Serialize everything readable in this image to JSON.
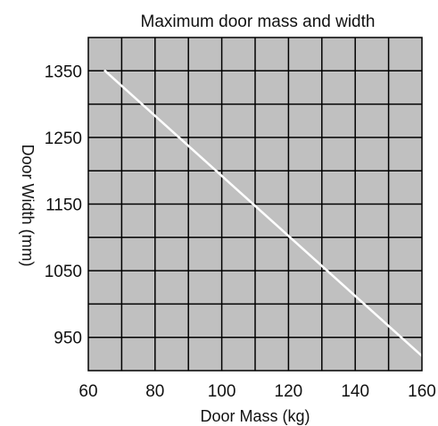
{
  "chart_data": {
    "type": "line",
    "title": "Maximum door mass and width",
    "xlabel": "Door Mass (kg)",
    "ylabel": "Door Width (mm)",
    "xlim": [
      60,
      160
    ],
    "ylim": [
      900,
      1400
    ],
    "x_ticks": [
      60,
      80,
      100,
      120,
      140,
      160
    ],
    "y_ticks": [
      950,
      1050,
      1150,
      1250,
      1350
    ],
    "x_tick_labels": [
      "60",
      "80",
      "100",
      "120",
      "140",
      "160"
    ],
    "y_tick_labels": [
      "950",
      "1050",
      "1150",
      "1250",
      "1350"
    ],
    "grid": true,
    "grid_step_x": 10,
    "grid_step_y": 50,
    "series": [
      {
        "x": [
          65,
          160
        ],
        "y": [
          1350,
          922
        ],
        "color": "#ffffff"
      }
    ],
    "colors": {
      "plot_background": "#c0c0c0",
      "grid": "#000000",
      "line": "#ffffff",
      "text": "#111111"
    }
  }
}
